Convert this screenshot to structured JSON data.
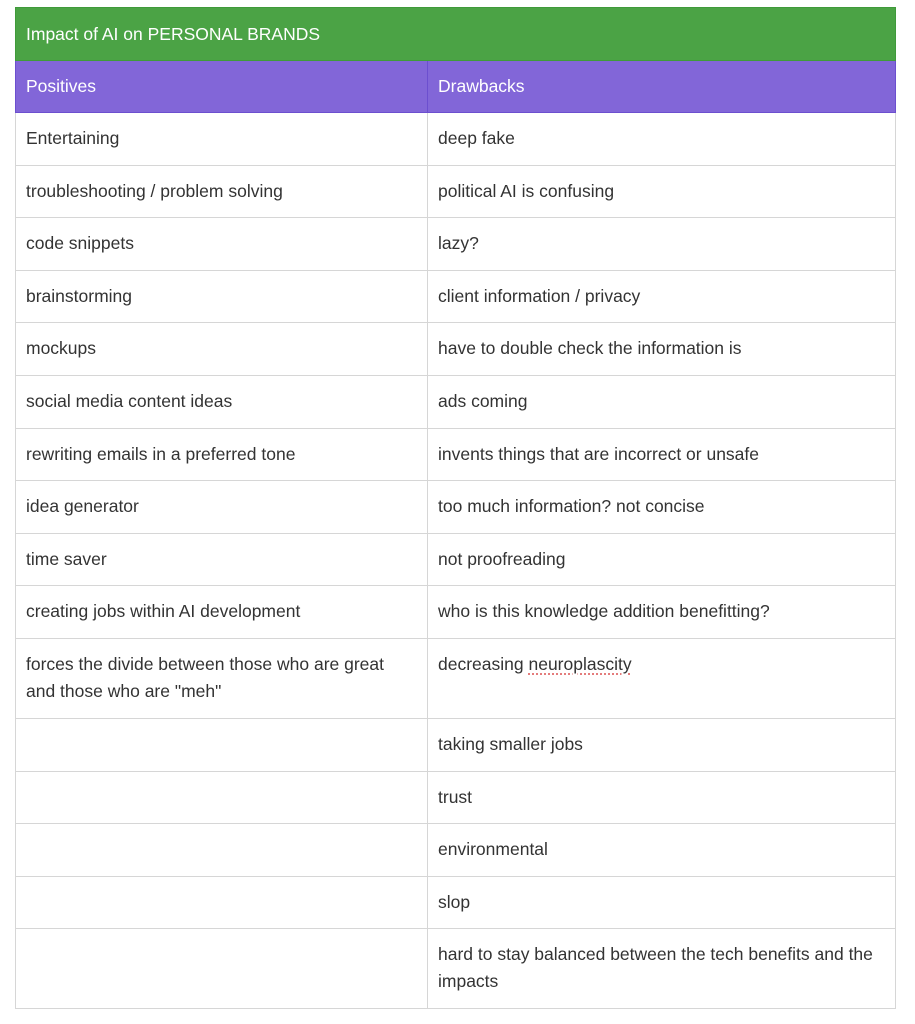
{
  "table": {
    "title": "Impact of AI on PERSONAL BRANDS",
    "headers": [
      "Positives",
      "Drawbacks"
    ],
    "rows": [
      [
        "Entertaining",
        "deep fake"
      ],
      [
        "troubleshooting / problem solving",
        "political AI is confusing"
      ],
      [
        "code snippets",
        "lazy?"
      ],
      [
        "brainstorming",
        "client information / privacy"
      ],
      [
        "mockups",
        "have to double check the information is"
      ],
      [
        "social media content ideas",
        "ads coming"
      ],
      [
        "rewriting emails in a preferred tone",
        "invents things that are incorrect or unsafe"
      ],
      [
        "idea generator",
        "too much information? not concise"
      ],
      [
        "time saver",
        "not proofreading"
      ],
      [
        "creating jobs within AI development",
        "who is this knowledge addition benefitting?"
      ],
      [
        "forces the divide between those who are great and those who are \"meh\"",
        "decreasing neuroplascity"
      ],
      [
        "",
        "taking smaller jobs"
      ],
      [
        "",
        "trust"
      ],
      [
        "",
        "environmental"
      ],
      [
        "",
        "slop"
      ],
      [
        "",
        "hard to stay balanced between the tech benefits and the impacts"
      ]
    ],
    "spellcheck_flagged": [
      "neuroplascity"
    ]
  },
  "colors": {
    "title_bg": "#4ba345",
    "header_bg": "#8266d8",
    "text": "#333333"
  }
}
